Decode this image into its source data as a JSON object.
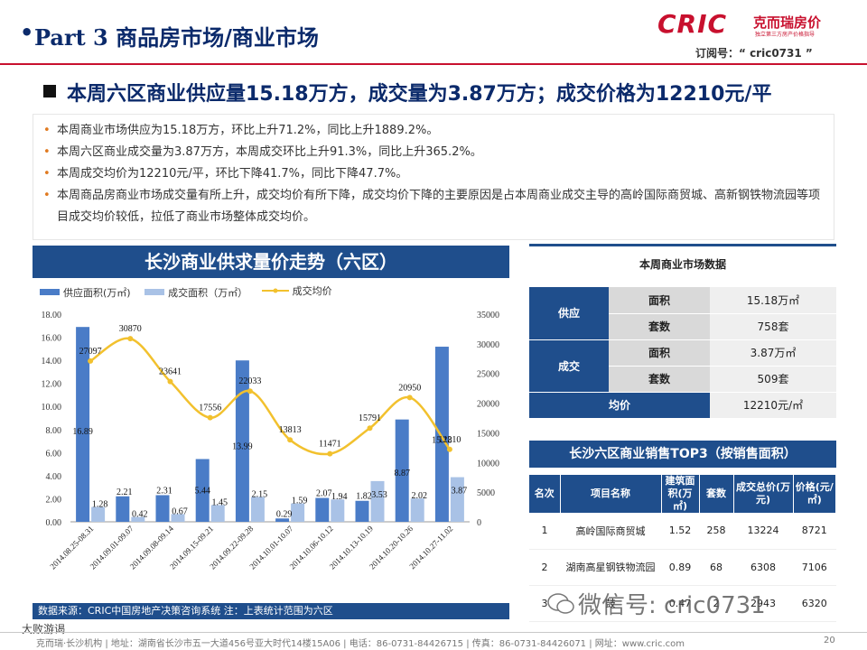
{
  "header": {
    "bullet": "•",
    "title": "Part 3 商品房市场/商业市场",
    "logo_text": "CRIC",
    "logo_cn": "克而瑞房价",
    "logo_sub": "独立第三方房产价格指导",
    "subscription": "订阅号：“ cric0731 ”"
  },
  "headline": "本周六区商业供应量15.18万方，成交量为3.87万方；成交价格为12210元/平",
  "bullets": [
    "本周商业市场供应为15.18万方，环比上升71.2%，同比上升1889.2%。",
    "本周六区商业成交量为3.87万方，本周成交环比上升91.3%，同比上升365.2%。",
    "本周成交均价为12210元/平，环比下降41.7%，同比下降47.7%。",
    "本周商品房商业市场成交量有所上升，成交均价有所下降，成交均价下降的主要原因是占本周商业成交主导的高岭国际商贸城、高新钢铁物流园等项目成交均价较低，拉低了商业市场整体成交均价。"
  ],
  "chart_title": "长沙商业供求量价走势（六区）",
  "chart_data": {
    "type": "bar",
    "categories": [
      "2014.08.25-08.31",
      "2014.09.01-09.07",
      "2014.09.08-09.14",
      "2014.09.15-09.21",
      "2014.09.22-09.28",
      "2014.10.01-10.07",
      "2014.10.06-10.12",
      "2014.10.13-10.19",
      "2014.10.20-10.26",
      "2014.10.27-11.02"
    ],
    "series": [
      {
        "name": "供应面积(万㎡)",
        "type": "bar",
        "axis": "left",
        "color": "#4a7cc7",
        "values": [
          16.89,
          2.21,
          2.31,
          5.44,
          13.99,
          0.29,
          2.07,
          1.82,
          8.87,
          15.18
        ]
      },
      {
        "name": "成交面积（万㎡）",
        "type": "bar",
        "axis": "left",
        "color": "#a9c2e6",
        "values": [
          1.28,
          0.42,
          0.67,
          1.45,
          2.15,
          1.59,
          1.94,
          3.53,
          2.02,
          3.87
        ]
      },
      {
        "name": "成交均价",
        "type": "line",
        "axis": "right",
        "color": "#f2c12e",
        "values": [
          27097,
          30870,
          23641,
          17556,
          22033,
          13813,
          11471,
          15791,
          20950,
          12210
        ]
      }
    ],
    "supply_labels": [
      "16.89",
      "2.21",
      "2.31",
      "5.44",
      "13.99",
      "0.29",
      "2.07",
      "1.82",
      "8.87",
      "15.18"
    ],
    "deal_labels": [
      "1.28",
      "0.42",
      "0.67",
      "1.45",
      "2.15",
      "1.59",
      "1.94",
      "3.53",
      "2.02",
      "3.87"
    ],
    "price_labels": [
      "27097",
      "30870",
      "23641",
      "17556",
      "22033",
      "13813",
      "11471",
      "15791",
      "20950",
      "12210"
    ],
    "left_ticks": [
      "0.00",
      "2.00",
      "4.00",
      "6.00",
      "8.00",
      "10.00",
      "12.00",
      "14.00",
      "16.00",
      "18.00"
    ],
    "right_ticks": [
      "0",
      "5000",
      "10000",
      "15000",
      "20000",
      "25000",
      "30000",
      "35000"
    ],
    "ylim_left": [
      0,
      18
    ],
    "ylim_right": [
      0,
      35000
    ],
    "legend_position": "top-left",
    "grid": false
  },
  "source": "数据来源：CRIC中国房地产决策咨询系统   注：上表统计范围为六区",
  "market_table": {
    "title": "本周商业市场数据",
    "supply_label": "供应",
    "deal_label": "成交",
    "area_label": "面积",
    "units_label": "套数",
    "supply_area": "15.18万㎡",
    "supply_units": "758套",
    "deal_area": "3.87万㎡",
    "deal_units": "509套",
    "avg_label": "均价",
    "avg_value": "12210元/㎡"
  },
  "top3": {
    "title": "长沙六区商业销售TOP3（按销售面积）",
    "headers": [
      "名次",
      "项目名称",
      "建筑面积(万㎡)",
      "套数",
      "成交总价(万元)",
      "价格(元/㎡)"
    ],
    "rows": [
      [
        "1",
        "高岭国际商贸城",
        "1.52",
        "258",
        "13224",
        "8721"
      ],
      [
        "2",
        "湖南高星钢铁物流园",
        "0.89",
        "68",
        "6308",
        "7106"
      ],
      [
        "3",
        "鼓",
        "0.47",
        "2",
        "2943",
        "6320"
      ]
    ]
  },
  "watermark": "微信号: cric0731",
  "corner_brand": "大败游谒",
  "footer": {
    "text": "克而瑞·长沙机构  |  地址：湖南省长沙市五一大道456号亚大时代14楼15A06  |  电话：86-0731-84426715  |  传真：86-0731-84426071  |  网址：www.cric.com",
    "page": "20"
  },
  "colors": {
    "brand_red": "#c8102e",
    "navy": "#1f4e8c",
    "supply_bar": "#4a7cc7",
    "deal_bar": "#a9c2e6",
    "price_line": "#f2c12e"
  }
}
